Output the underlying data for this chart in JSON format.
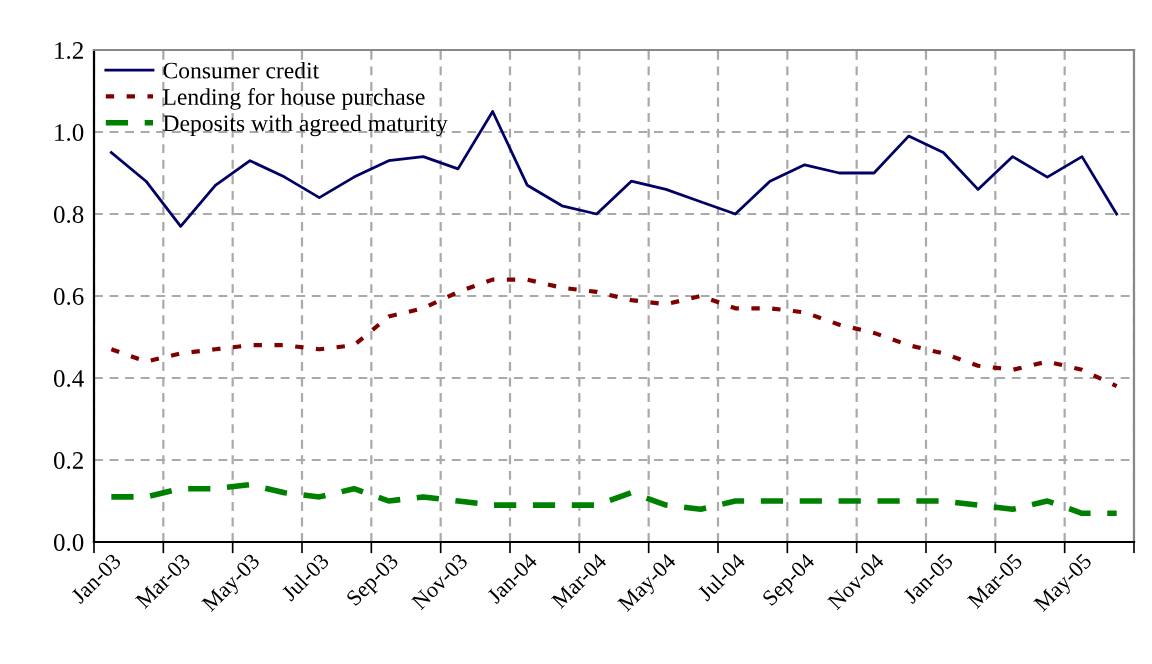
{
  "chart_data": {
    "type": "line",
    "categories": [
      "Jan-03",
      null,
      "Mar-03",
      null,
      "May-03",
      null,
      "Jul-03",
      null,
      "Sep-03",
      null,
      "Nov-03",
      null,
      "Jan-04",
      null,
      "Mar-04",
      null,
      "May-04",
      null,
      "Jul-04",
      null,
      "Sep-04",
      null,
      "Nov-04",
      null,
      "Jan-05",
      null,
      "Mar-05",
      null,
      "May-05",
      null
    ],
    "series": [
      {
        "name": "Consumer credit",
        "color": "#000066",
        "line_style": "solid",
        "values": [
          0.95,
          0.88,
          0.77,
          0.87,
          0.93,
          0.89,
          0.84,
          0.89,
          0.93,
          0.94,
          0.91,
          1.05,
          0.87,
          0.82,
          0.8,
          0.88,
          0.86,
          0.83,
          0.8,
          0.88,
          0.92,
          0.9,
          0.9,
          0.99,
          0.95,
          0.86,
          0.94,
          0.89,
          0.94,
          0.8
        ]
      },
      {
        "name": "Lending for house purchase",
        "color": "#800000",
        "line_style": "dotted",
        "values": [
          0.47,
          0.44,
          0.46,
          0.47,
          0.48,
          0.48,
          0.47,
          0.48,
          0.55,
          0.57,
          0.61,
          0.64,
          0.64,
          0.62,
          0.61,
          0.59,
          0.58,
          0.6,
          0.57,
          0.57,
          0.56,
          0.53,
          0.51,
          0.48,
          0.46,
          0.43,
          0.42,
          0.44,
          0.42,
          0.38
        ]
      },
      {
        "name": "Deposits with agreed maturity",
        "color": "#008000",
        "line_style": "dashed",
        "values": [
          0.11,
          0.11,
          0.13,
          0.13,
          0.14,
          0.12,
          0.11,
          0.13,
          0.1,
          0.11,
          0.1,
          0.09,
          0.09,
          0.09,
          0.09,
          0.12,
          0.09,
          0.08,
          0.1,
          0.1,
          0.1,
          0.1,
          0.1,
          0.1,
          0.1,
          0.09,
          0.08,
          0.1,
          0.07,
          0.07
        ]
      }
    ],
    "ylim": [
      0,
      1.2
    ],
    "yticks": [
      {
        "value": 0,
        "label": "0.0"
      },
      {
        "value": 0.2,
        "label": "0.2"
      },
      {
        "value": 0.4,
        "label": "0.4"
      },
      {
        "value": 0.6,
        "label": "0.6"
      },
      {
        "value": 0.8,
        "label": "0.8"
      },
      {
        "value": 1.0,
        "label": "1.0"
      },
      {
        "value": 1.2,
        "label": "1.2"
      }
    ],
    "grid": true,
    "legend": "top left",
    "marker": "none"
  }
}
